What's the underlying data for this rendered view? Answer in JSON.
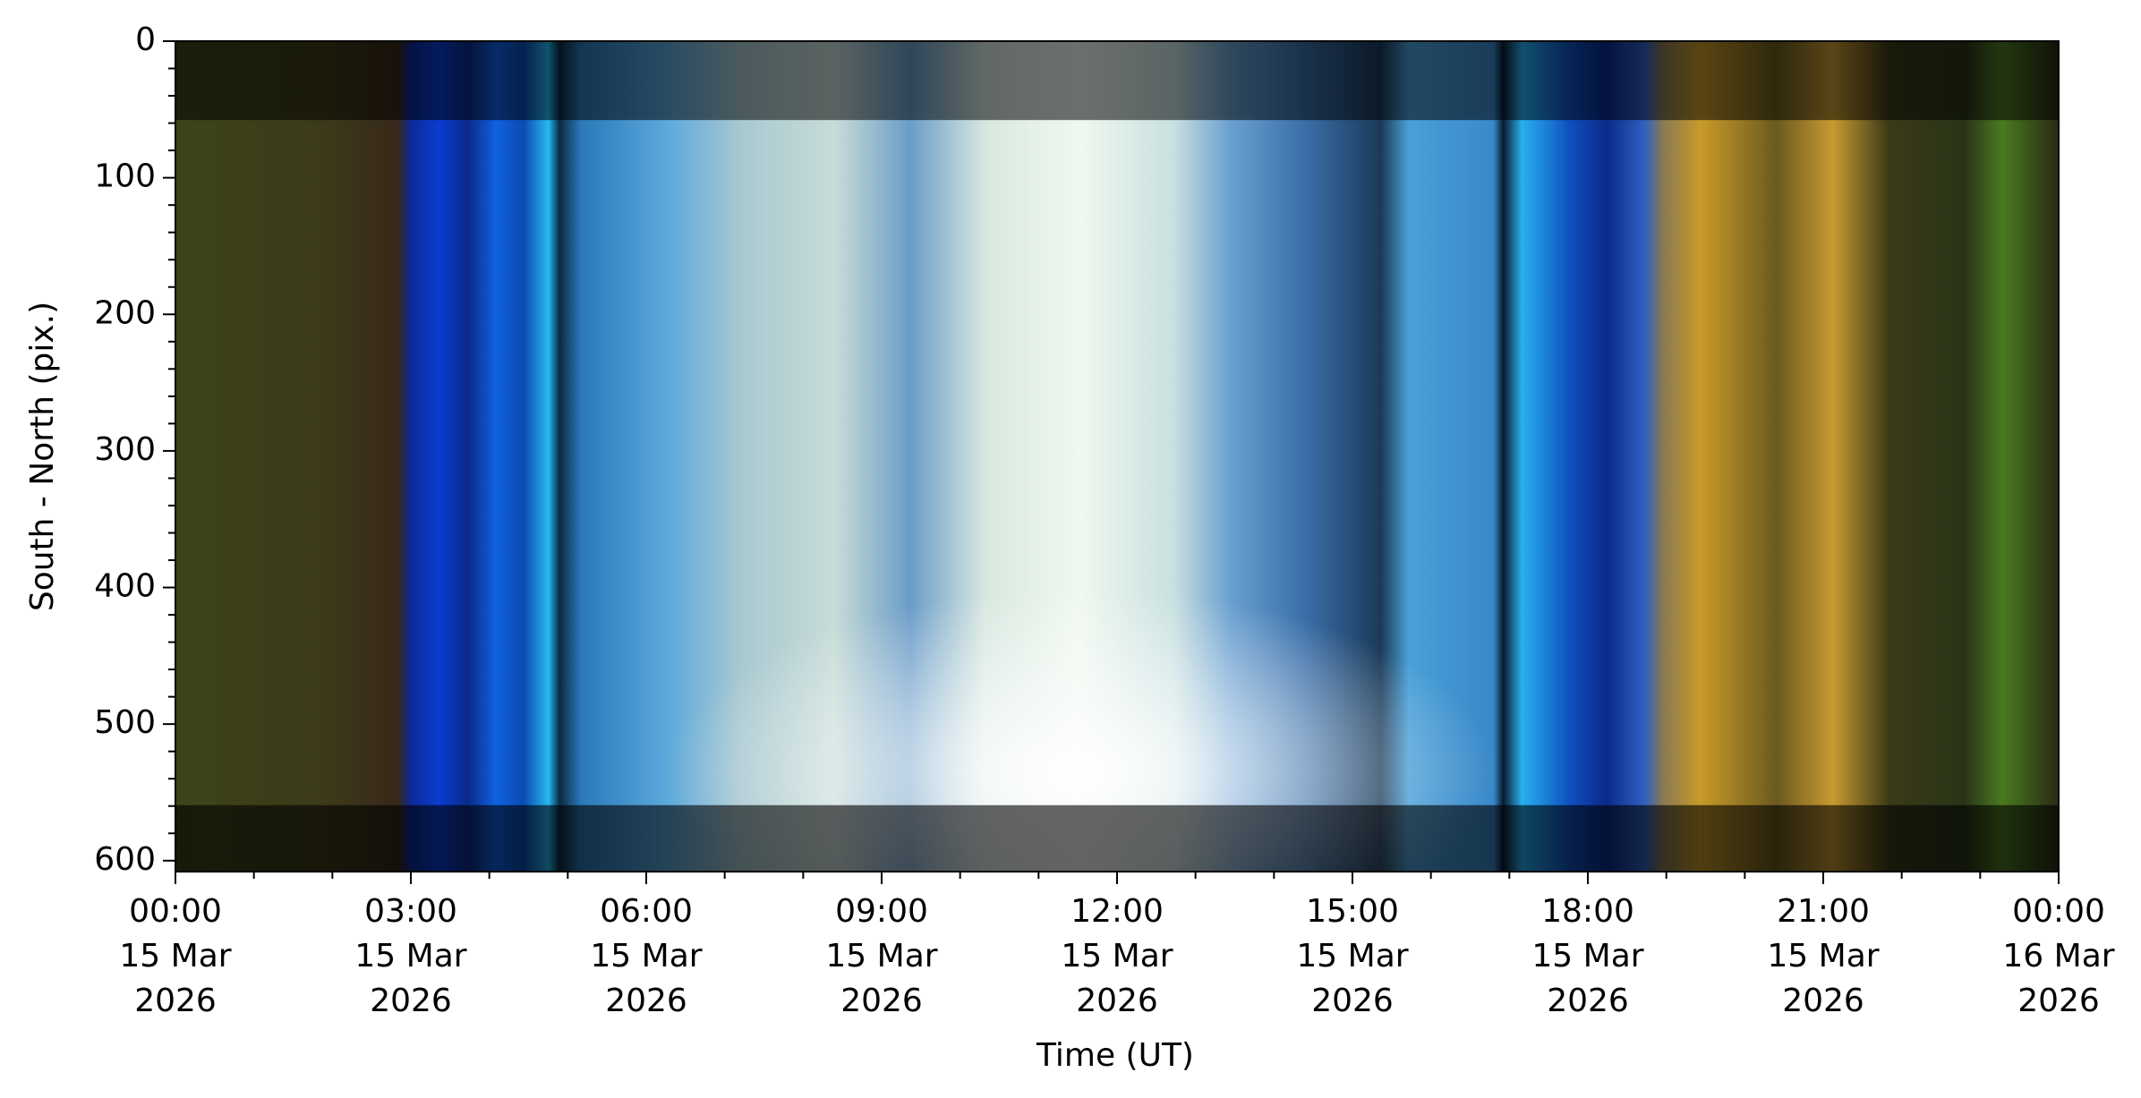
{
  "chart_data": {
    "type": "image",
    "x_label": "Time (UT)",
    "y_label": "South - North (pix.)",
    "xlim": [
      "2026-03-15T00:00",
      "2026-03-16T00:00"
    ],
    "xticks": [
      {
        "value": "2026-03-15T00:00",
        "label": [
          "00:00",
          "15 Mar",
          "2026"
        ]
      },
      {
        "value": "2026-03-15T03:00",
        "label": [
          "03:00",
          "15 Mar",
          "2026"
        ]
      },
      {
        "value": "2026-03-15T06:00",
        "label": [
          "06:00",
          "15 Mar",
          "2026"
        ]
      },
      {
        "value": "2026-03-15T09:00",
        "label": [
          "09:00",
          "15 Mar",
          "2026"
        ]
      },
      {
        "value": "2026-03-15T12:00",
        "label": [
          "12:00",
          "15 Mar",
          "2026"
        ]
      },
      {
        "value": "2026-03-15T15:00",
        "label": [
          "15:00",
          "15 Mar",
          "2026"
        ]
      },
      {
        "value": "2026-03-15T18:00",
        "label": [
          "18:00",
          "15 Mar",
          "2026"
        ]
      },
      {
        "value": "2026-03-15T21:00",
        "label": [
          "21:00",
          "15 Mar",
          "2026"
        ]
      },
      {
        "value": "2026-03-16T00:00",
        "label": [
          "00:00",
          "16 Mar",
          "2026"
        ]
      }
    ],
    "ylim": [
      0,
      608
    ],
    "y_inverted": true,
    "yticks": [
      0,
      100,
      200,
      300,
      400,
      500,
      600
    ]
  }
}
